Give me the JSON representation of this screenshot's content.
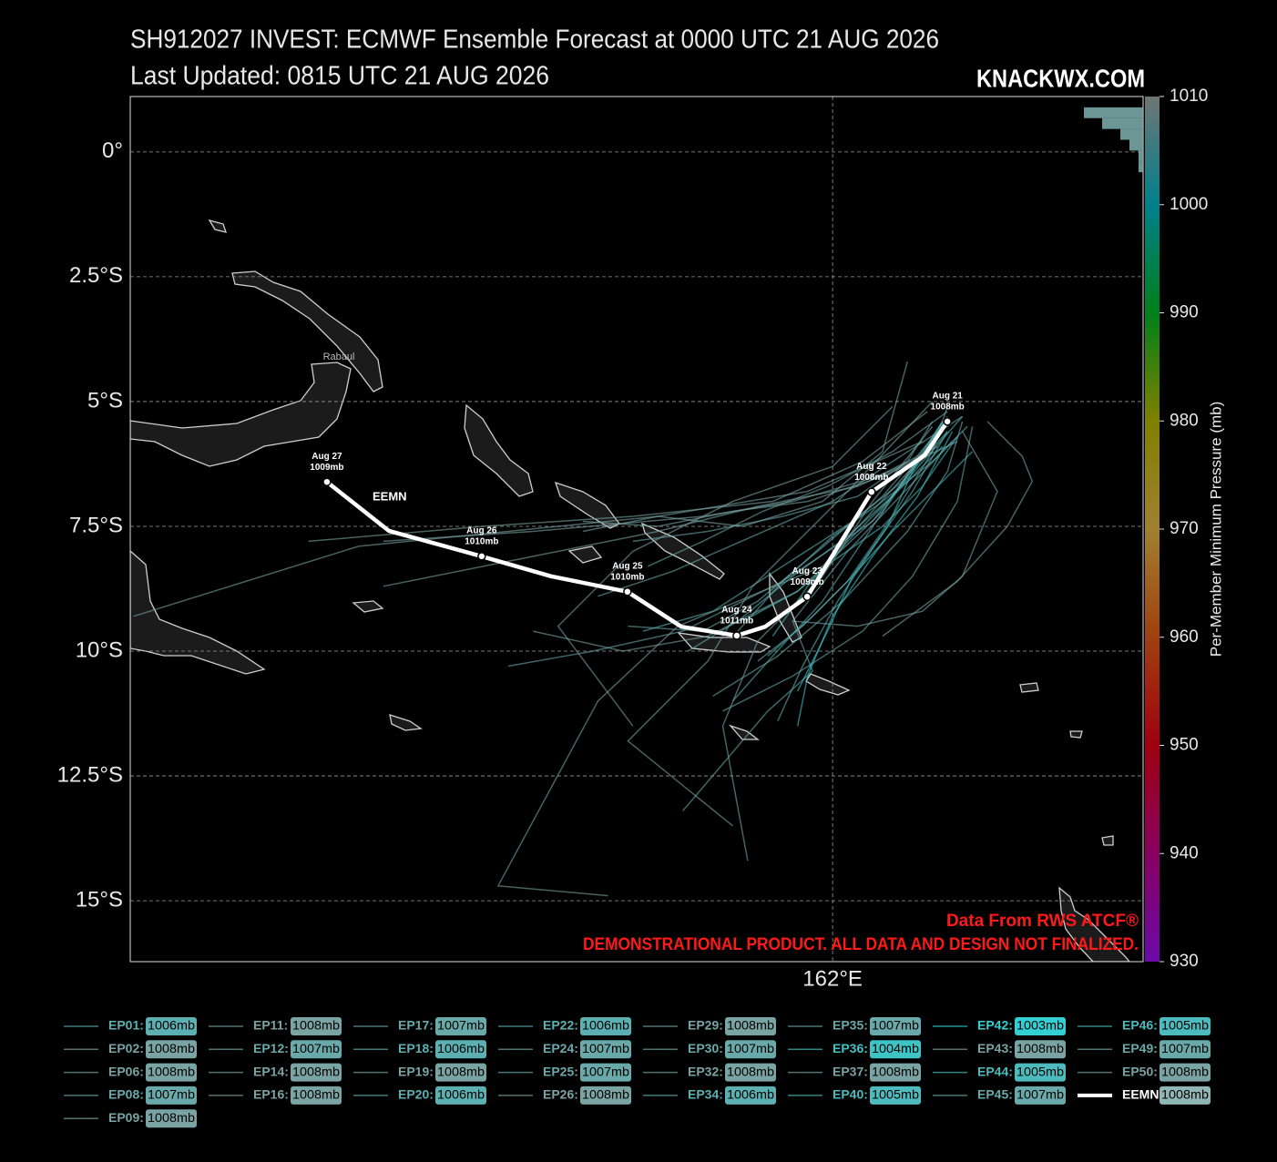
{
  "chart_data": {
    "type": "track-map",
    "title": "SH912027 INVEST: ECMWF Ensemble Forecast at 0000 UTC 21 AUG 2026",
    "subtitle": "Last Updated: 0815 UTC 21 AUG 2026",
    "brand": "KNACKWX.COM",
    "place_label": "Rabaul",
    "annotations": [
      "Data From RWS ATCF®",
      "DEMONSTRATIONAL PRODUCT. ALL DATA AND DESIGN NOT FINALIZED."
    ],
    "xlim": [
      147.93,
      168.22
    ],
    "ylim": [
      -16.22,
      1.11
    ],
    "xticks": [
      {
        "value": 162,
        "label": "162°E"
      }
    ],
    "yticks": [
      {
        "value": 0,
        "label": "0°"
      },
      {
        "value": -2.5,
        "label": "2.5°S"
      },
      {
        "value": -5,
        "label": "5°S"
      },
      {
        "value": -7.5,
        "label": "7.5°S"
      },
      {
        "value": -10,
        "label": "10°S"
      },
      {
        "value": -12.5,
        "label": "12.5°S"
      },
      {
        "value": -15,
        "label": "15°S"
      }
    ],
    "grid": true,
    "colorbar": {
      "label": "Per-Member Minimum Pressure (mb)",
      "lim": [
        930,
        1010
      ],
      "ticks": [
        930,
        940,
        950,
        960,
        970,
        980,
        990,
        1000,
        1010
      ],
      "colors": [
        "#6a0aa8",
        "#880060",
        "#a00010",
        "#a04010",
        "#a08030",
        "#808000",
        "#00801a",
        "#00808c",
        "#707575"
      ]
    },
    "mean": {
      "name": "EEMN:",
      "label": "EEMN",
      "color": "#ffffff",
      "value": 1008,
      "value_label": "1008mb",
      "lon": [
        164.3,
        163.84,
        162.78,
        161.49,
        160.65,
        160.08,
        158.97,
        157.89,
        156.36,
        154.97,
        153.11,
        151.87
      ],
      "lat": [
        -5.4,
        -6.08,
        -6.81,
        -8.91,
        -9.51,
        -9.69,
        -9.51,
        -8.81,
        -8.5,
        -8.1,
        -7.59,
        -6.61
      ],
      "dates": [
        "Aug 21",
        null,
        "Aug 22",
        "Aug 23",
        null,
        "Aug 24",
        null,
        "Aug 25",
        null,
        "Aug 26",
        null,
        "Aug 27"
      ],
      "pressure_labels": [
        "1008mb",
        null,
        "1008mb",
        "1009mb",
        null,
        "1011mb",
        null,
        "1010mb",
        null,
        "1010mb",
        null,
        "1009mb"
      ]
    },
    "series": [
      {
        "name": "EP01:",
        "value": 1006,
        "value_label": "1006mb",
        "color": "#5cb0b2",
        "lon": [
          164.3,
          163.4,
          162.4,
          161.0,
          159.6,
          158.2
        ],
        "lat": [
          -5.6,
          -6.6,
          -7.4,
          -8.3,
          -9.2,
          -9.6
        ]
      },
      {
        "name": "EP02:",
        "value": 1008,
        "value_label": "1008mb",
        "color": "#7aa3a3",
        "lon": [
          164.5,
          163.0,
          161.5,
          160.0,
          158.5,
          157.0
        ],
        "lat": [
          -5.8,
          -6.5,
          -7.0,
          -7.2,
          -7.5,
          -7.4
        ]
      },
      {
        "name": "EP06:",
        "value": 1008,
        "value_label": "1008mb",
        "color": "#7aa3a3",
        "lon": [
          164.0,
          162.8,
          161.8,
          160.5,
          159.8,
          160.3
        ],
        "lat": [
          -5.5,
          -7.0,
          -8.5,
          -9.8,
          -11.5,
          -14.2
        ]
      },
      {
        "name": "EP08:",
        "value": 1007,
        "value_label": "1007mb",
        "color": "#6aa9aa",
        "lon": [
          164.6,
          163.2,
          162.0,
          160.4,
          158.8,
          157.3
        ],
        "lat": [
          -5.3,
          -6.2,
          -7.0,
          -7.7,
          -8.4,
          -8.9
        ]
      },
      {
        "name": "EP09:",
        "value": 1008,
        "value_label": "1008mb",
        "color": "#7aa3a3",
        "lon": [
          163.8,
          161.5,
          158.5,
          155.5,
          152.5,
          148.0
        ],
        "lat": [
          -5.8,
          -6.8,
          -7.3,
          -7.6,
          -7.9,
          -9.3
        ]
      },
      {
        "name": "EP11:",
        "value": 1008,
        "value_label": "1008mb",
        "color": "#7aa3a3",
        "lon": [
          164.2,
          163.0,
          161.3,
          159.5,
          157.8,
          156.0
        ],
        "lat": [
          -5.4,
          -7.2,
          -8.8,
          -9.7,
          -10.0,
          -9.6
        ]
      },
      {
        "name": "EP12:",
        "value": 1007,
        "value_label": "1007mb",
        "color": "#6aa9aa",
        "lon": [
          164.8,
          164.5,
          163.6,
          162.6,
          161.2,
          159.8
        ],
        "lat": [
          -5.5,
          -7.0,
          -8.5,
          -9.6,
          -10.5,
          -11.2
        ]
      },
      {
        "name": "EP14:",
        "value": 1008,
        "value_label": "1008mb",
        "color": "#7aa3a3",
        "lon": [
          163.5,
          163.0,
          161.8,
          160.2,
          158.5,
          157.0
        ],
        "lat": [
          -4.2,
          -6.0,
          -7.0,
          -7.5,
          -7.3,
          -7.6
        ]
      },
      {
        "name": "EP16:",
        "value": 1008,
        "value_label": "1008mb",
        "color": "#7aa3a3",
        "lon": [
          163.9,
          162.6,
          160.8,
          158.0,
          155.0,
          151.5
        ],
        "lat": [
          -5.2,
          -6.2,
          -7.0,
          -7.3,
          -7.5,
          -7.8
        ]
      },
      {
        "name": "EP17:",
        "value": 1007,
        "value_label": "1007mb",
        "color": "#6aa9aa",
        "lon": [
          164.4,
          162.3,
          161.2,
          161.6,
          160.7,
          159.0
        ],
        "lat": [
          -5.8,
          -8.0,
          -9.4,
          -10.4,
          -11.2,
          -13.2
        ]
      },
      {
        "name": "EP18:",
        "value": 1006,
        "value_label": "1006mb",
        "color": "#5cb0b2",
        "lon": [
          164.3,
          163.6,
          162.9,
          162.1,
          161.4,
          160.9
        ],
        "lat": [
          -5.6,
          -6.8,
          -7.8,
          -9.0,
          -10.3,
          -11.4
        ]
      },
      {
        "name": "EP19:",
        "value": 1008,
        "value_label": "1008mb",
        "color": "#7aa3a3",
        "lon": [
          164.0,
          162.5,
          160.5,
          158.5,
          156.0,
          153.0
        ],
        "lat": [
          -6.0,
          -6.7,
          -7.1,
          -7.6,
          -8.1,
          -8.7
        ]
      },
      {
        "name": "EP20:",
        "value": 1006,
        "value_label": "1006mb",
        "color": "#5cb0b2",
        "lon": [
          164.7,
          164.0,
          163.0,
          162.0,
          161.0,
          160.1
        ],
        "lat": [
          -5.5,
          -6.2,
          -7.0,
          -7.7,
          -8.6,
          -9.6
        ]
      },
      {
        "name": "EP22:",
        "value": 1006,
        "value_label": "1006mb",
        "color": "#5cb0b2",
        "lon": [
          164.2,
          163.3,
          162.3,
          161.2,
          160.1,
          159.1
        ],
        "lat": [
          -5.9,
          -6.8,
          -7.7,
          -8.5,
          -9.4,
          -10.0
        ]
      },
      {
        "name": "EP24:",
        "value": 1007,
        "value_label": "1007mb",
        "color": "#6aa9aa",
        "lon": [
          164.6,
          164.3,
          163.5,
          162.2,
          160.9,
          159.6
        ],
        "lat": [
          -5.4,
          -6.4,
          -7.6,
          -9.0,
          -10.1,
          -10.9
        ]
      },
      {
        "name": "EP25:",
        "value": 1007,
        "value_label": "1007mb",
        "color": "#6aa9aa",
        "lon": [
          164.1,
          162.8,
          161.0,
          159.0,
          157.2,
          155.5
        ],
        "lat": [
          -5.7,
          -7.4,
          -8.6,
          -9.6,
          -10.0,
          -10.3
        ]
      },
      {
        "name": "EP26:",
        "value": 1008,
        "value_label": "1008mb",
        "color": "#7aa3a3",
        "lon": [
          163.2,
          162.0,
          160.0,
          158.0,
          156.5,
          158.0
        ],
        "lat": [
          -5.1,
          -6.3,
          -7.0,
          -8.0,
          -9.5,
          -11.5
        ]
      },
      {
        "name": "EP29:",
        "value": 1008,
        "value_label": "1008mb",
        "color": "#7aa3a3",
        "lon": [
          164.6,
          165.3,
          164.6,
          163.8,
          162.5,
          161.2
        ],
        "lat": [
          -5.6,
          -6.8,
          -8.5,
          -9.2,
          -9.5,
          -9.4
        ]
      },
      {
        "name": "EP30:",
        "value": 1007,
        "value_label": "1007mb",
        "color": "#6aa9aa",
        "lon": [
          164.3,
          163.2,
          161.9,
          160.6,
          159.4,
          158.3
        ],
        "lat": [
          -5.2,
          -6.0,
          -6.7,
          -7.2,
          -7.8,
          -8.3
        ]
      },
      {
        "name": "EP32:",
        "value": 1008,
        "value_label": "1008mb",
        "color": "#7aa3a3",
        "lon": [
          163.7,
          161.8,
          158.9,
          157.3,
          155.3,
          157.5
        ],
        "lat": [
          -6.2,
          -8.3,
          -9.5,
          -11.0,
          -14.7,
          -14.9
        ]
      },
      {
        "name": "EP34:",
        "value": 1006,
        "value_label": "1006mb",
        "color": "#5cb0b2",
        "lon": [
          164.3,
          163.5,
          162.6,
          161.8,
          160.8,
          160.0
        ],
        "lat": [
          -5.3,
          -6.5,
          -7.8,
          -9.0,
          -10.1,
          -11.0
        ]
      },
      {
        "name": "EP35:",
        "value": 1007,
        "value_label": "1007mb",
        "color": "#6aa9aa",
        "lon": [
          164.0,
          163.5,
          162.5,
          161.0,
          159.5,
          158.0
        ],
        "lat": [
          -5.4,
          -6.2,
          -6.9,
          -7.3,
          -7.6,
          -7.8
        ]
      },
      {
        "name": "EP36:",
        "value": 1004,
        "value_label": "1004mb",
        "color": "#3fc4c6",
        "lon": [
          164.4,
          163.7,
          162.8,
          162.0,
          161.5,
          161.3
        ],
        "lat": [
          -5.6,
          -6.9,
          -8.1,
          -9.3,
          -10.5,
          -11.5
        ]
      },
      {
        "name": "EP37:",
        "value": 1008,
        "value_label": "1008mb",
        "color": "#7aa3a3",
        "lon": [
          164.0,
          162.3,
          160.4,
          159.5,
          157.9,
          160.0
        ],
        "lat": [
          -5.0,
          -6.8,
          -8.7,
          -10.2,
          -11.8,
          -13.5
        ]
      },
      {
        "name": "EP40:",
        "value": 1005,
        "value_label": "1005mb",
        "color": "#4dbbbd",
        "lon": [
          164.5,
          163.8,
          163.0,
          162.0,
          161.3,
          160.2
        ],
        "lat": [
          -5.7,
          -6.7,
          -7.5,
          -8.2,
          -8.8,
          -9.4
        ]
      },
      {
        "name": "EP42:",
        "value": 1003,
        "value_label": "1003mb",
        "color": "#33cfd2",
        "lon": [
          164.2,
          163.6,
          163.1,
          162.4,
          161.9,
          161.3
        ],
        "lat": [
          -5.4,
          -6.4,
          -7.5,
          -8.5,
          -9.6,
          -10.8
        ]
      },
      {
        "name": "EP43:",
        "value": 1008,
        "value_label": "1008mb",
        "color": "#7aa3a3",
        "lon": [
          165.1,
          165.8,
          166.0,
          165.5,
          164.5,
          163.0
        ],
        "lat": [
          -5.4,
          -6.1,
          -6.6,
          -7.5,
          -8.6,
          -9.7
        ]
      },
      {
        "name": "EP44:",
        "value": 1005,
        "value_label": "1005mb",
        "color": "#4dbbbd",
        "lon": [
          164.6,
          163.9,
          163.1,
          162.3,
          161.5,
          160.8
        ],
        "lat": [
          -5.3,
          -6.1,
          -7.0,
          -7.8,
          -8.7,
          -9.7
        ]
      },
      {
        "name": "EP45:",
        "value": 1007,
        "value_label": "1007mb",
        "color": "#6aa9aa",
        "lon": [
          164.2,
          163.0,
          161.7,
          160.5,
          159.4,
          157.9
        ],
        "lat": [
          -5.5,
          -6.9,
          -8.0,
          -9.0,
          -9.6,
          -9.5
        ]
      },
      {
        "name": "EP46:",
        "value": 1005,
        "value_label": "1005mb",
        "color": "#4dbbbd",
        "lon": [
          164.8,
          164.0,
          163.2,
          162.4,
          161.6,
          160.7
        ],
        "lat": [
          -6.0,
          -6.8,
          -7.6,
          -8.5,
          -9.3,
          -10.1
        ]
      },
      {
        "name": "EP49:",
        "value": 1007,
        "value_label": "1007mb",
        "color": "#6aa9aa",
        "lon": [
          164.3,
          164.0,
          163.2,
          162.3,
          161.4,
          160.5
        ],
        "lat": [
          -5.1,
          -6.0,
          -7.3,
          -8.6,
          -9.5,
          -10.2
        ]
      },
      {
        "name": "EP50:",
        "value": 1008,
        "value_label": "1008mb",
        "color": "#7aa3a3",
        "lon": [
          164.1,
          162.9,
          161.2,
          159.4,
          156.0,
          153.0
        ],
        "lat": [
          -5.9,
          -6.5,
          -7.0,
          -7.3,
          -7.6,
          -7.8
        ]
      }
    ]
  }
}
